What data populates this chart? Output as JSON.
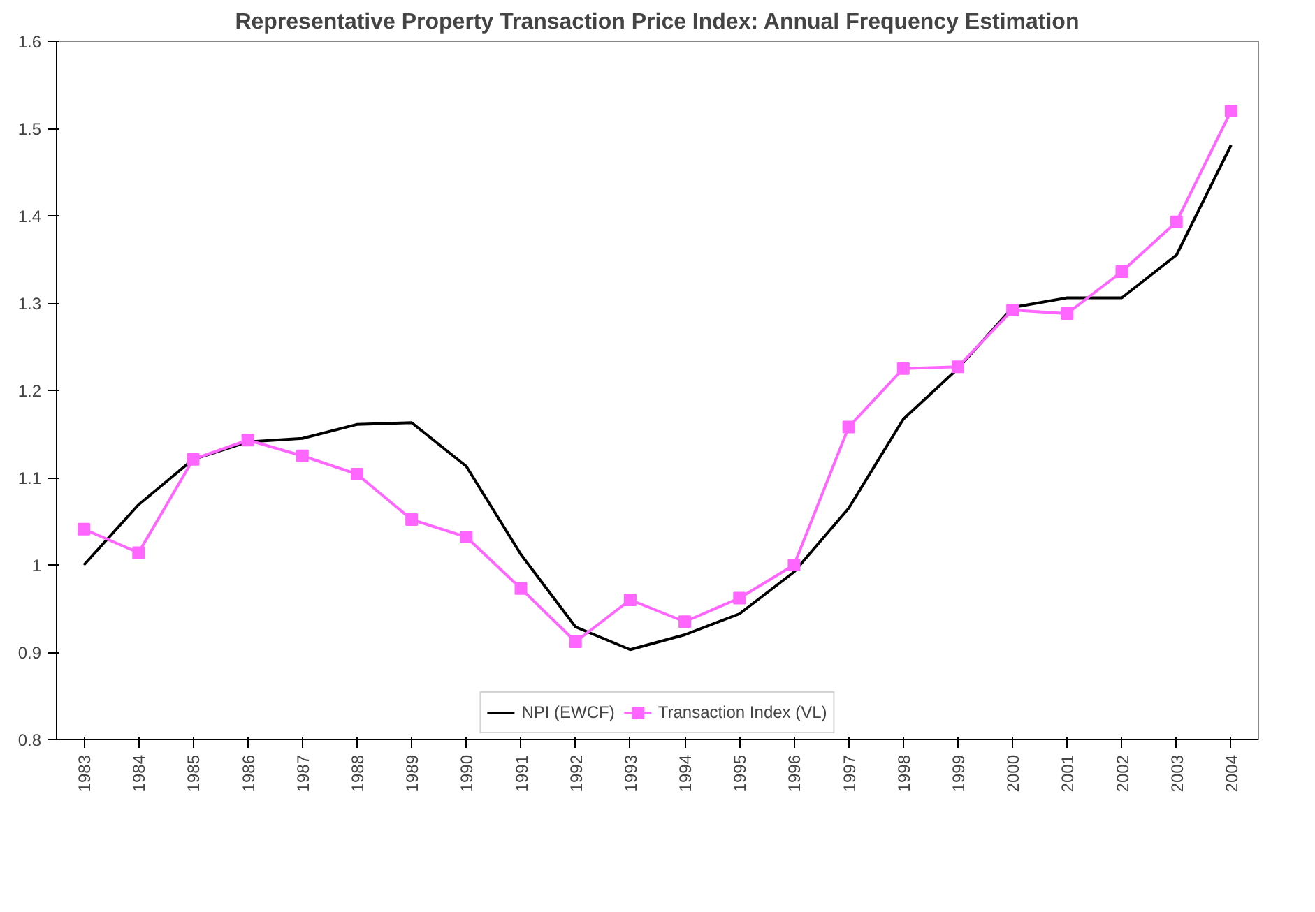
{
  "chart_data": {
    "type": "line",
    "title": "Representative Property Transaction Price Index: Annual Frequency Estimation",
    "categories": [
      "1983",
      "1984",
      "1985",
      "1986",
      "1987",
      "1988",
      "1989",
      "1990",
      "1991",
      "1992",
      "1993",
      "1994",
      "1995",
      "1996",
      "1997",
      "1998",
      "1999",
      "2000",
      "2001",
      "2002",
      "2003",
      "2004"
    ],
    "series": [
      {
        "name": "NPI (EWCF)",
        "color": "#000000",
        "marker": "none",
        "values": [
          1.0,
          1.069,
          1.121,
          1.141,
          1.145,
          1.161,
          1.163,
          1.113,
          1.012,
          0.929,
          0.903,
          0.92,
          0.944,
          0.992,
          1.065,
          1.167,
          1.225,
          1.295,
          1.306,
          1.306,
          1.355,
          1.481
        ]
      },
      {
        "name": "Transaction Index (VL)",
        "color": "#ff66ff",
        "marker": "square",
        "values": [
          1.041,
          1.014,
          1.121,
          1.143,
          1.125,
          1.104,
          1.052,
          1.032,
          0.973,
          0.912,
          0.96,
          0.935,
          0.962,
          1.0,
          1.158,
          1.225,
          1.227,
          1.292,
          1.288,
          1.336,
          1.393,
          1.52
        ]
      }
    ],
    "ylim": [
      0.8,
      1.6
    ],
    "yticks": [
      0.8,
      0.9,
      1,
      1.1,
      1.2,
      1.3,
      1.4,
      1.5,
      1.6
    ],
    "grid": false,
    "legend": "bottom",
    "line_style": "solid"
  }
}
